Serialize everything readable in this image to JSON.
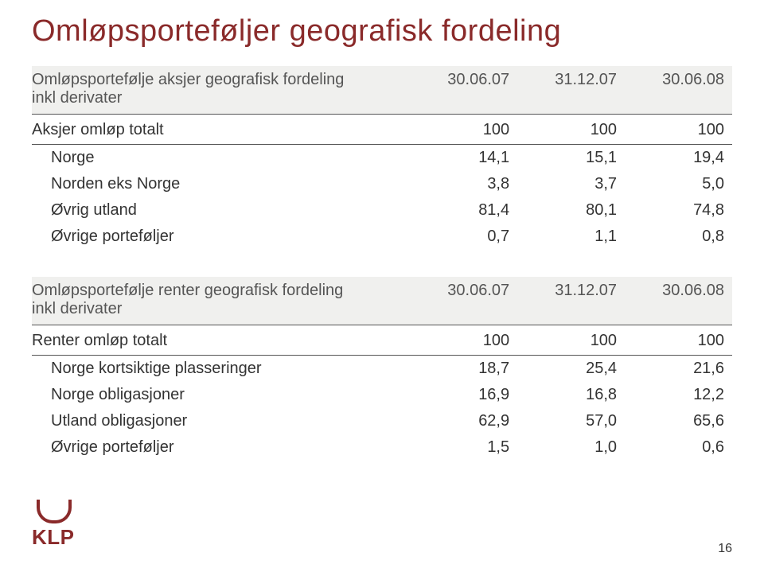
{
  "colors": {
    "title": "#8a2a2a",
    "header_text": "#555555",
    "header_bg": "#f0f0ee",
    "border": "#555555",
    "body_text": "#333333",
    "logo": "#8a2a2a",
    "page_num": "#333333"
  },
  "title": "Omløpsporteføljer geografisk fordeling",
  "table1": {
    "header_label_line1": "Omløpsportefølje aksjer geografisk fordeling",
    "header_label_line2": "inkl derivater",
    "cols": [
      "30.06.07",
      "31.12.07",
      "30.06.08"
    ],
    "section": {
      "label": "Aksjer omløp totalt",
      "vals": [
        "100",
        "100",
        "100"
      ]
    },
    "rows": [
      {
        "label": "Norge",
        "vals": [
          "14,1",
          "15,1",
          "19,4"
        ]
      },
      {
        "label": "Norden eks Norge",
        "vals": [
          "3,8",
          "3,7",
          "5,0"
        ]
      },
      {
        "label": "Øvrig utland",
        "vals": [
          "81,4",
          "80,1",
          "74,8"
        ]
      },
      {
        "label": "Øvrige porteføljer",
        "vals": [
          "0,7",
          "1,1",
          "0,8"
        ]
      }
    ]
  },
  "table2": {
    "header_label_line1": "Omløpsportefølje renter geografisk fordeling",
    "header_label_line2": "inkl derivater",
    "cols": [
      "30.06.07",
      "31.12.07",
      "30.06.08"
    ],
    "section": {
      "label": "Renter omløp totalt",
      "vals": [
        "100",
        "100",
        "100"
      ]
    },
    "rows": [
      {
        "label": "Norge kortsiktige plasseringer",
        "vals": [
          "18,7",
          "25,4",
          "21,6"
        ]
      },
      {
        "label": "Norge obligasjoner",
        "vals": [
          "16,9",
          "16,8",
          "12,2"
        ]
      },
      {
        "label": "Utland obligasjoner",
        "vals": [
          "62,9",
          "57,0",
          "65,6"
        ]
      },
      {
        "label": "Øvrige porteføljer",
        "vals": [
          "1,5",
          "1,0",
          "0,6"
        ]
      }
    ]
  },
  "logo_text": "KLP",
  "page_number": "16"
}
